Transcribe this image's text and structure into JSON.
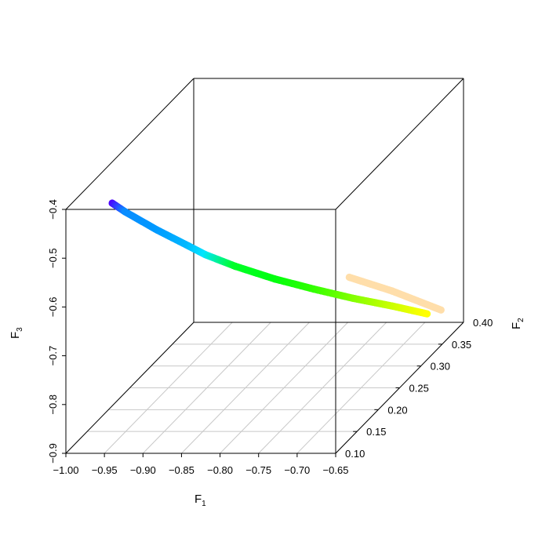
{
  "chart_data": {
    "type": "scatter3d",
    "title": "",
    "xlabel": "F",
    "xlabel_sub": "1",
    "ylabel": "F",
    "ylabel_sub": "2",
    "zlabel": "F",
    "zlabel_sub": "3",
    "xlim": [
      -1.0,
      -0.65
    ],
    "ylim": [
      0.1,
      0.4
    ],
    "zlim": [
      -0.9,
      -0.4
    ],
    "x_ticks": [
      "-1.00",
      "-0.95",
      "-0.90",
      "-0.85",
      "-0.80",
      "-0.75",
      "-0.70",
      "-0.65"
    ],
    "y_ticks": [
      "0.10",
      "0.15",
      "0.20",
      "0.25",
      "0.30",
      "0.35",
      "0.40"
    ],
    "z_ticks": [
      "-0.9",
      "-0.8",
      "-0.7",
      "-0.6",
      "-0.5",
      "-0.4"
    ],
    "grid": "floor",
    "series": [
      {
        "points": [
          {
            "x": -0.951,
            "y": 0.12,
            "z": -0.405,
            "color": "#4b00ff"
          },
          {
            "x": -0.944,
            "y": 0.138,
            "z": -0.439,
            "color": "#0a8cff"
          },
          {
            "x": -0.913,
            "y": 0.156,
            "z": -0.492,
            "color": "#0099ff"
          },
          {
            "x": -0.882,
            "y": 0.174,
            "z": -0.541,
            "color": "#00b8ff"
          },
          {
            "x": -0.87,
            "y": 0.192,
            "z": -0.575,
            "color": "#00e5ff"
          },
          {
            "x": -0.841,
            "y": 0.21,
            "z": -0.615,
            "color": "#00ff2a"
          },
          {
            "x": -0.8,
            "y": 0.228,
            "z": -0.657,
            "color": "#00ff10"
          },
          {
            "x": -0.759,
            "y": 0.246,
            "z": -0.694,
            "color": "#30ff00"
          },
          {
            "x": -0.718,
            "y": 0.264,
            "z": -0.729,
            "color": "#80ff00"
          },
          {
            "x": -0.677,
            "y": 0.282,
            "z": -0.761,
            "color": "#c8ff00"
          },
          {
            "x": -0.642,
            "y": 0.3,
            "z": -0.793,
            "color": "#ffff00"
          }
        ]
      },
      {
        "points": [
          {
            "x": -0.754,
            "y": 0.32,
            "z": -0.736,
            "color": "#ffdeaa"
          },
          {
            "x": -0.704,
            "y": 0.33,
            "z": -0.773,
            "color": "#ffdeaa"
          },
          {
            "x": -0.646,
            "y": 0.34,
            "z": -0.821,
            "color": "#ffdeaa"
          }
        ]
      }
    ]
  }
}
